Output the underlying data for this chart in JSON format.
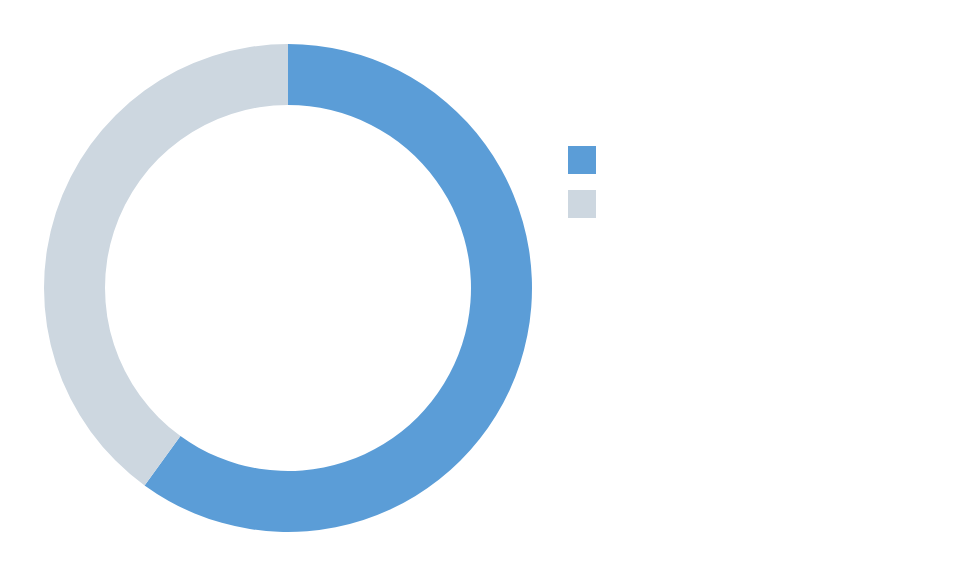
{
  "chart_data": {
    "type": "donut",
    "categories": [
      null,
      null
    ],
    "values": [
      60,
      40
    ],
    "colors": [
      "#5b9dd7",
      "#cdd7e0"
    ]
  }
}
